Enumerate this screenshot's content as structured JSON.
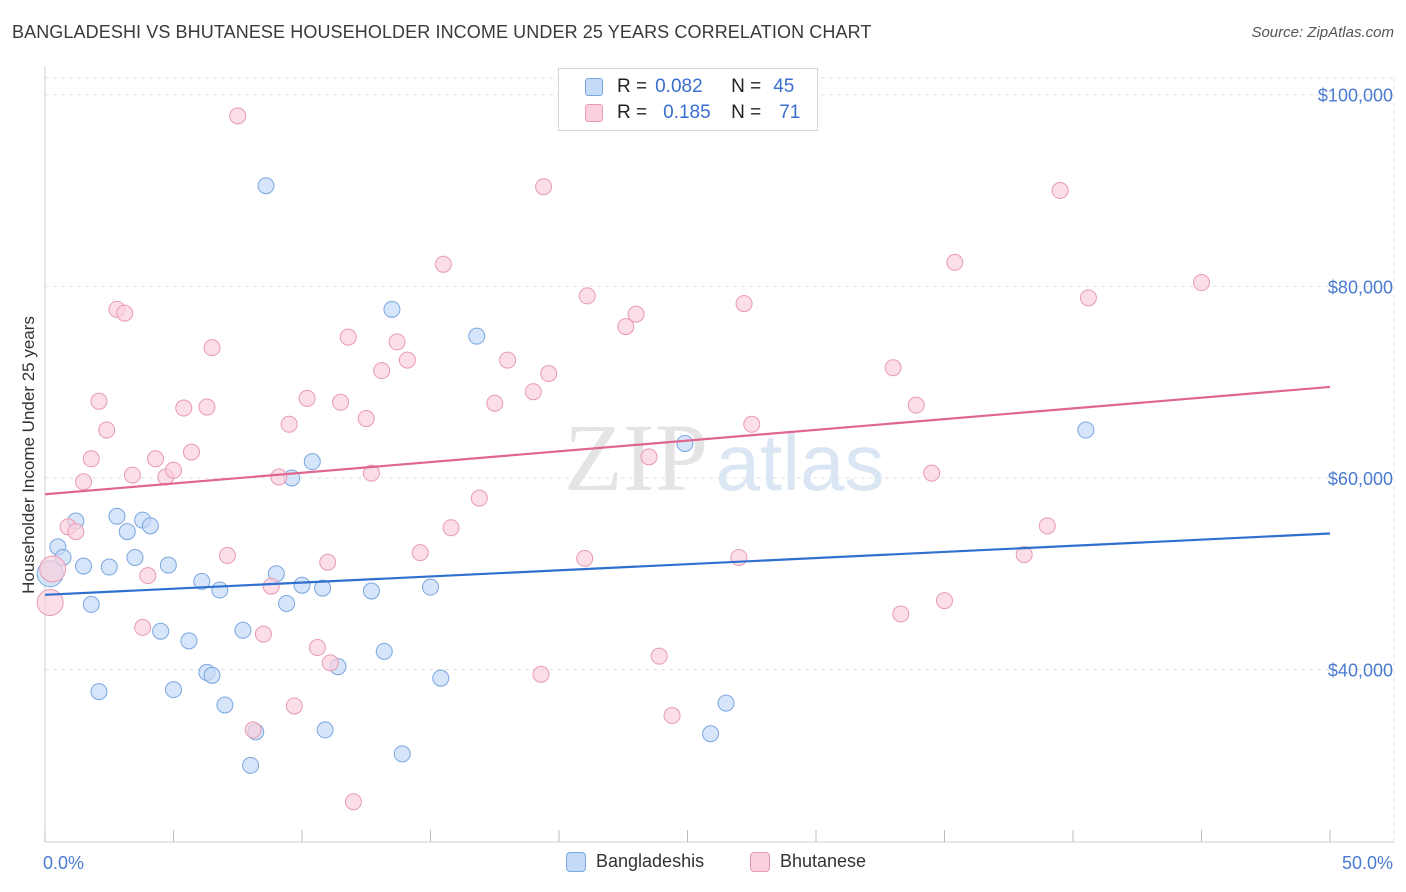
{
  "title": "BANGLADESHI VS BHUTANESE HOUSEHOLDER INCOME UNDER 25 YEARS CORRELATION CHART",
  "source": "Source: ZipAtlas.com",
  "watermark": {
    "zip": "ZIP",
    "atlas": "atlas"
  },
  "legend_stats": [
    {
      "r_label": "R =",
      "r_value": "0.082",
      "n_label": "N =",
      "n_value": "45",
      "color": "#aac8f0",
      "border": "#7aa6e0"
    },
    {
      "r_label": "R =",
      "r_value": "0.185",
      "n_label": "N =",
      "n_value": "71",
      "color": "#f7c0d0",
      "border": "#e89ab2"
    }
  ],
  "bottom_legend": [
    {
      "label": "Bangladeshis",
      "color": "#c5daf6",
      "border": "#7aa6e0"
    },
    {
      "label": "Bhutanese",
      "color": "#fad0dc",
      "border": "#e89ab2"
    }
  ],
  "chart_data": {
    "type": "scatter",
    "xlabel": "",
    "ylabel": "Householder Income Under 25 years",
    "xlim": [
      0,
      50
    ],
    "ylim": [
      22000,
      103000
    ],
    "x_tick_labels": [
      "0.0%",
      "50.0%"
    ],
    "y_ticks": [
      40000,
      60000,
      80000,
      100000
    ],
    "y_tick_labels": [
      "$40,000",
      "$60,000",
      "$80,000",
      "$100,000"
    ],
    "grid": true,
    "series": [
      {
        "name": "Bangladeshis",
        "color": "#7aa6e0",
        "fill": "#c5daf6",
        "trend_color": "#2f6fd0",
        "trend": {
          "x": [
            0,
            50
          ],
          "y": [
            47800,
            54200
          ]
        },
        "points": [
          [
            0.2,
            50000
          ],
          [
            0.5,
            52800
          ],
          [
            0.7,
            51700
          ],
          [
            1.2,
            55500
          ],
          [
            1.5,
            50800
          ],
          [
            1.8,
            46800
          ],
          [
            2.1,
            37700
          ],
          [
            2.5,
            50700
          ],
          [
            2.8,
            56000
          ],
          [
            3.2,
            54400
          ],
          [
            3.5,
            51700
          ],
          [
            3.8,
            55600
          ],
          [
            4.1,
            55000
          ],
          [
            4.5,
            44000
          ],
          [
            4.8,
            50900
          ],
          [
            5.0,
            37900
          ],
          [
            5.6,
            43000
          ],
          [
            6.1,
            49200
          ],
          [
            6.3,
            39700
          ],
          [
            6.5,
            39400
          ],
          [
            6.8,
            48300
          ],
          [
            7.0,
            36300
          ],
          [
            7.7,
            44100
          ],
          [
            8.0,
            30000
          ],
          [
            8.2,
            33500
          ],
          [
            8.6,
            90500
          ],
          [
            9.0,
            50000
          ],
          [
            9.4,
            46900
          ],
          [
            9.6,
            60000
          ],
          [
            10.0,
            48800
          ],
          [
            10.4,
            61700
          ],
          [
            10.8,
            48500
          ],
          [
            10.9,
            33700
          ],
          [
            11.4,
            40300
          ],
          [
            12.7,
            48200
          ],
          [
            13.2,
            41900
          ],
          [
            13.5,
            77600
          ],
          [
            13.9,
            31200
          ],
          [
            15.0,
            48600
          ],
          [
            15.4,
            39100
          ],
          [
            16.8,
            74800
          ],
          [
            24.9,
            63600
          ],
          [
            25.9,
            33300
          ],
          [
            26.5,
            36500
          ],
          [
            40.5,
            65000
          ]
        ]
      },
      {
        "name": "Bhutanese",
        "color": "#e89ab2",
        "fill": "#fad0dc",
        "trend_color": "#e06690",
        "trend": {
          "x": [
            0,
            50
          ],
          "y": [
            58300,
            69500
          ]
        },
        "points": [
          [
            0.2,
            47000
          ],
          [
            0.3,
            50500
          ],
          [
            0.9,
            54900
          ],
          [
            1.2,
            54400
          ],
          [
            1.5,
            59600
          ],
          [
            1.8,
            62000
          ],
          [
            2.1,
            68000
          ],
          [
            2.4,
            65000
          ],
          [
            2.8,
            77600
          ],
          [
            3.1,
            77200
          ],
          [
            3.4,
            60300
          ],
          [
            3.8,
            44400
          ],
          [
            4.0,
            49800
          ],
          [
            4.3,
            62000
          ],
          [
            4.7,
            60100
          ],
          [
            5.0,
            60800
          ],
          [
            5.4,
            67300
          ],
          [
            5.7,
            62700
          ],
          [
            6.3,
            67400
          ],
          [
            6.5,
            73600
          ],
          [
            7.1,
            51900
          ],
          [
            7.5,
            97800
          ],
          [
            8.1,
            33700
          ],
          [
            8.5,
            43700
          ],
          [
            8.8,
            48700
          ],
          [
            9.1,
            60100
          ],
          [
            9.5,
            65600
          ],
          [
            9.7,
            36200
          ],
          [
            10.2,
            68300
          ],
          [
            10.6,
            42300
          ],
          [
            11.0,
            51200
          ],
          [
            11.1,
            40700
          ],
          [
            11.5,
            67900
          ],
          [
            11.8,
            74700
          ],
          [
            12.0,
            26200
          ],
          [
            12.5,
            66200
          ],
          [
            12.7,
            60500
          ],
          [
            13.1,
            71200
          ],
          [
            13.7,
            74200
          ],
          [
            14.1,
            72300
          ],
          [
            14.6,
            52200
          ],
          [
            15.5,
            82300
          ],
          [
            15.8,
            54800
          ],
          [
            16.9,
            57900
          ],
          [
            17.5,
            67800
          ],
          [
            18.0,
            72300
          ],
          [
            19.0,
            69000
          ],
          [
            19.3,
            39500
          ],
          [
            19.4,
            90400
          ],
          [
            19.6,
            70900
          ],
          [
            21.0,
            51600
          ],
          [
            21.1,
            79000
          ],
          [
            22.6,
            75800
          ],
          [
            23.0,
            77100
          ],
          [
            23.5,
            62200
          ],
          [
            23.9,
            41400
          ],
          [
            24.4,
            35200
          ],
          [
            27.0,
            51700
          ],
          [
            27.2,
            78200
          ],
          [
            27.5,
            65600
          ],
          [
            33.0,
            71500
          ],
          [
            33.3,
            45800
          ],
          [
            33.9,
            67600
          ],
          [
            34.5,
            60500
          ],
          [
            35.0,
            47200
          ],
          [
            35.4,
            82500
          ],
          [
            38.1,
            52000
          ],
          [
            39.0,
            55000
          ],
          [
            39.5,
            90000
          ],
          [
            40.6,
            78800
          ],
          [
            45.0,
            80400
          ]
        ]
      }
    ]
  }
}
